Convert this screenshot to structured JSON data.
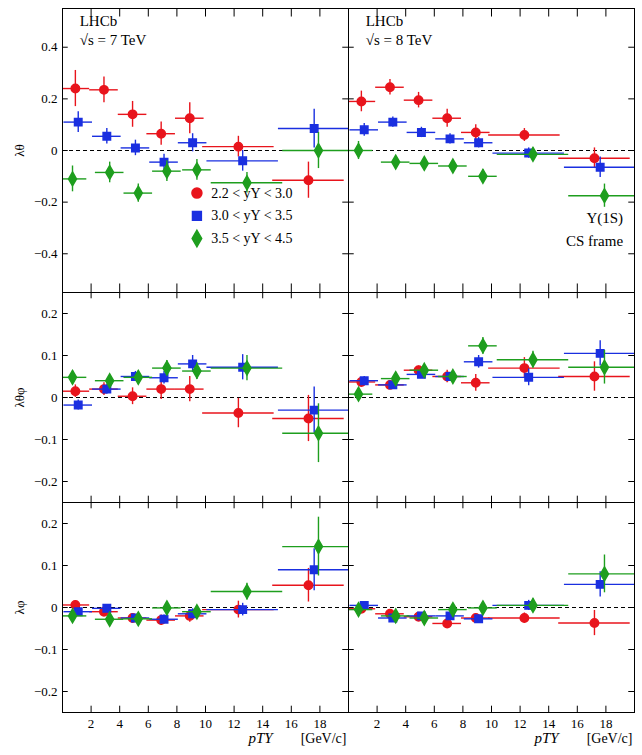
{
  "chart_data": [
    {
      "type": "scatter",
      "title": "LHCb",
      "subtitle": "√s = 7 TeV",
      "y_label": "λθ",
      "legend": "lower right",
      "tick_labels": "y",
      "xlim": [
        0,
        20
      ],
      "xticks": [
        2,
        4,
        6,
        8,
        10,
        12,
        14,
        16,
        18
      ],
      "ylim": [
        -0.55,
        0.55
      ],
      "yticks": [
        -0.4,
        -0.2,
        0,
        0.2,
        0.4
      ],
      "hline": 0,
      "series": [
        {
          "name": "2.2 < yΥ < 3.0",
          "color": "#e8141c",
          "marker": "circle",
          "x": [
            0.9,
            2.9,
            4.9,
            6.9,
            8.9,
            12.3,
            17.2
          ],
          "x_errors": [
            1,
            1,
            1,
            1,
            1,
            2.5,
            2.5
          ],
          "values": [
            0.24,
            0.235,
            0.14,
            0.065,
            0.125,
            0.015,
            -0.115
          ],
          "errors": [
            0.07,
            0.05,
            0.05,
            0.045,
            0.06,
            0.04,
            0.07
          ]
        },
        {
          "name": "3.0 < yΥ < 3.5",
          "color": "#1a2fe0",
          "marker": "square",
          "x": [
            1.1,
            3.1,
            5.1,
            7.1,
            9.1,
            12.6,
            17.6
          ],
          "x_errors": [
            1,
            1,
            1,
            1,
            1,
            2.5,
            2.5
          ],
          "values": [
            0.11,
            0.055,
            0.01,
            -0.045,
            0.03,
            -0.04,
            0.085
          ],
          "errors": [
            0.04,
            0.03,
            0.03,
            0.03,
            0.035,
            0.04,
            0.075
          ]
        },
        {
          "name": "3.5 < yΥ < 4.5",
          "color": "#1e9e1e",
          "marker": "diamond",
          "x": [
            0.7,
            3.3,
            5.3,
            7.3,
            9.4,
            12.9,
            17.9
          ],
          "x_errors": [
            1,
            1,
            1,
            1,
            1,
            2.5,
            2.5
          ],
          "values": [
            -0.11,
            -0.085,
            -0.165,
            -0.08,
            -0.075,
            -0.125,
            0.0
          ],
          "errors": [
            0.05,
            0.04,
            0.035,
            0.04,
            0.04,
            0.04,
            0.07
          ]
        }
      ]
    },
    {
      "type": "scatter",
      "title": "LHCb",
      "subtitle": "√s = 8 TeV",
      "note": [
        "Υ(1S)",
        "CS frame"
      ],
      "tick_labels": false,
      "xlim": [
        0,
        20
      ],
      "xticks": [
        2,
        4,
        6,
        8,
        10,
        12,
        14,
        16,
        18
      ],
      "ylim": [
        -0.55,
        0.55
      ],
      "yticks": [
        -0.4,
        -0.2,
        0,
        0.2,
        0.4
      ],
      "hline": 0,
      "series": [
        {
          "name": "2.2 < yΥ < 3.0",
          "color": "#e8141c",
          "marker": "circle",
          "x": [
            0.9,
            2.9,
            4.9,
            6.9,
            8.9,
            12.3,
            17.2
          ],
          "x_errors": [
            1,
            1,
            1,
            1,
            1,
            2.5,
            2.5
          ],
          "values": [
            0.19,
            0.245,
            0.195,
            0.125,
            0.07,
            0.06,
            -0.03
          ],
          "errors": [
            0.04,
            0.03,
            0.03,
            0.035,
            0.03,
            0.025,
            0.04
          ]
        },
        {
          "name": "3.0 < yΥ < 3.5",
          "color": "#1a2fe0",
          "marker": "square",
          "x": [
            1.1,
            3.1,
            5.1,
            7.1,
            9.1,
            12.6,
            17.6
          ],
          "x_errors": [
            1,
            1,
            1,
            1,
            1,
            2.5,
            2.5
          ],
          "values": [
            0.08,
            0.11,
            0.07,
            0.045,
            0.03,
            -0.01,
            -0.065
          ],
          "errors": [
            0.025,
            0.02,
            0.02,
            0.02,
            0.02,
            0.02,
            0.04
          ]
        },
        {
          "name": "3.5 < yΥ < 4.5",
          "color": "#1e9e1e",
          "marker": "diamond",
          "x": [
            0.7,
            3.3,
            5.3,
            7.3,
            9.4,
            12.9,
            17.9
          ],
          "x_errors": [
            1,
            1,
            1,
            1,
            1,
            2.5,
            2.5
          ],
          "values": [
            0.0,
            -0.045,
            -0.05,
            -0.06,
            -0.1,
            -0.015,
            -0.175
          ],
          "errors": [
            0.035,
            0.02,
            0.02,
            0.02,
            0.025,
            0.025,
            0.045
          ]
        }
      ]
    },
    {
      "type": "scatter",
      "y_label": "λθφ",
      "tick_labels": "y",
      "xlim": [
        0,
        20
      ],
      "xticks": [
        2,
        4,
        6,
        8,
        10,
        12,
        14,
        16,
        18
      ],
      "ylim": [
        -0.25,
        0.25
      ],
      "yticks": [
        -0.2,
        -0.1,
        0,
        0.1,
        0.2
      ],
      "hline": 0,
      "series": [
        {
          "name": "2.2 < yΥ < 3.0",
          "color": "#e8141c",
          "marker": "circle",
          "x": [
            0.9,
            2.9,
            4.9,
            6.9,
            8.9,
            12.3,
            17.2
          ],
          "x_errors": [
            1,
            1,
            1,
            1,
            1,
            2.5,
            2.5
          ],
          "values": [
            0.015,
            0.02,
            0.003,
            0.02,
            0.02,
            -0.037,
            -0.05
          ],
          "errors": [
            0.015,
            0.015,
            0.02,
            0.025,
            0.03,
            0.035,
            0.055
          ]
        },
        {
          "name": "3.0 < yΥ < 3.5",
          "color": "#1a2fe0",
          "marker": "square",
          "x": [
            1.1,
            3.1,
            5.1,
            7.1,
            9.1,
            12.6,
            17.6
          ],
          "x_errors": [
            1,
            1,
            1,
            1,
            1,
            2.5,
            2.5
          ],
          "values": [
            -0.018,
            0.02,
            0.05,
            0.047,
            0.08,
            0.072,
            -0.03
          ],
          "errors": [
            0.012,
            0.012,
            0.012,
            0.015,
            0.02,
            0.03,
            0.055
          ]
        },
        {
          "name": "3.5 < yΥ < 4.5",
          "color": "#1e9e1e",
          "marker": "diamond",
          "x": [
            0.7,
            3.3,
            5.3,
            7.3,
            9.4,
            12.9,
            17.9
          ],
          "x_errors": [
            1,
            1,
            1,
            1,
            1,
            2.5,
            2.5
          ],
          "values": [
            0.048,
            0.04,
            0.048,
            0.07,
            0.063,
            0.07,
            -0.085
          ],
          "errors": [
            0.015,
            0.012,
            0.015,
            0.018,
            0.02,
            0.03,
            0.07
          ]
        }
      ]
    },
    {
      "type": "scatter",
      "tick_labels": false,
      "xlim": [
        0,
        20
      ],
      "xticks": [
        2,
        4,
        6,
        8,
        10,
        12,
        14,
        16,
        18
      ],
      "ylim": [
        -0.25,
        0.25
      ],
      "yticks": [
        -0.2,
        -0.1,
        0,
        0.1,
        0.2
      ],
      "hline": 0,
      "series": [
        {
          "name": "2.2 < yΥ < 3.0",
          "color": "#e8141c",
          "marker": "circle",
          "x": [
            0.9,
            2.9,
            4.9,
            6.9,
            8.9,
            12.3,
            17.2
          ],
          "x_errors": [
            1,
            1,
            1,
            1,
            1,
            2.5,
            2.5
          ],
          "values": [
            0.037,
            0.03,
            0.065,
            0.05,
            0.035,
            0.07,
            0.05
          ],
          "errors": [
            0.01,
            0.01,
            0.01,
            0.015,
            0.02,
            0.025,
            0.035
          ]
        },
        {
          "name": "3.0 < yΥ < 3.5",
          "color": "#1a2fe0",
          "marker": "square",
          "x": [
            1.1,
            3.1,
            5.1,
            7.1,
            9.1,
            12.6,
            17.6
          ],
          "x_errors": [
            1,
            1,
            1,
            1,
            1,
            2.5,
            2.5
          ],
          "values": [
            0.04,
            0.03,
            0.055,
            0.05,
            0.085,
            0.048,
            0.105
          ],
          "errors": [
            0.01,
            0.008,
            0.008,
            0.01,
            0.015,
            0.02,
            0.03
          ]
        },
        {
          "name": "3.5 < yΥ < 4.5",
          "color": "#1e9e1e",
          "marker": "diamond",
          "x": [
            0.7,
            3.3,
            5.3,
            7.3,
            9.4,
            12.9,
            17.9
          ],
          "x_errors": [
            1,
            1,
            1,
            1,
            1,
            2.5,
            2.5
          ],
          "values": [
            0.008,
            0.045,
            0.065,
            0.05,
            0.123,
            0.09,
            0.072
          ],
          "errors": [
            0.008,
            0.008,
            0.01,
            0.012,
            0.02,
            0.02,
            0.04
          ]
        }
      ]
    },
    {
      "type": "scatter",
      "y_label": "λφ",
      "x_label": "pTΥ",
      "x_unit": "[GeV/c]",
      "tick_labels": true,
      "xlim": [
        0,
        20
      ],
      "xticks": [
        2,
        4,
        6,
        8,
        10,
        12,
        14,
        16,
        18
      ],
      "ylim": [
        -0.25,
        0.25
      ],
      "yticks": [
        -0.2,
        -0.1,
        0,
        0.1,
        0.2
      ],
      "hline": 0,
      "series": [
        {
          "name": "2.2 < yΥ < 3.0",
          "color": "#e8141c",
          "marker": "circle",
          "x": [
            0.9,
            2.9,
            4.9,
            6.9,
            8.9,
            12.3,
            17.2
          ],
          "x_errors": [
            1,
            1,
            1,
            1,
            1,
            2.5,
            2.5
          ],
          "values": [
            0.006,
            -0.01,
            -0.025,
            -0.03,
            -0.02,
            -0.005,
            0.053
          ],
          "errors": [
            0.01,
            0.01,
            0.01,
            0.012,
            0.015,
            0.02,
            0.04
          ]
        },
        {
          "name": "3.0 < yΥ < 3.5",
          "color": "#1a2fe0",
          "marker": "square",
          "x": [
            1.1,
            3.1,
            5.1,
            7.1,
            9.1,
            12.6,
            17.6
          ],
          "x_errors": [
            1,
            1,
            1,
            1,
            1,
            2.5,
            2.5
          ],
          "values": [
            -0.01,
            -0.002,
            -0.025,
            -0.028,
            -0.015,
            -0.005,
            0.09
          ],
          "errors": [
            0.008,
            0.008,
            0.008,
            0.01,
            0.012,
            0.015,
            0.05
          ]
        },
        {
          "name": "3.5 < yΥ < 4.5",
          "color": "#1e9e1e",
          "marker": "diamond",
          "x": [
            0.7,
            3.3,
            5.3,
            7.3,
            9.4,
            12.9,
            17.9
          ],
          "x_errors": [
            1,
            1,
            1,
            1,
            1,
            2.5,
            2.5
          ],
          "values": [
            -0.02,
            -0.028,
            -0.027,
            -0.001,
            -0.01,
            0.038,
            0.145
          ],
          "errors": [
            0.008,
            0.008,
            0.008,
            0.01,
            0.012,
            0.02,
            0.07
          ]
        }
      ]
    },
    {
      "type": "scatter",
      "x_label": "pTΥ",
      "x_unit": "[GeV/c]",
      "tick_labels": "x",
      "xlim": [
        0,
        20
      ],
      "xticks": [
        2,
        4,
        6,
        8,
        10,
        12,
        14,
        16,
        18
      ],
      "ylim": [
        -0.25,
        0.25
      ],
      "yticks": [
        -0.2,
        -0.1,
        0,
        0.1,
        0.2
      ],
      "hline": 0,
      "series": [
        {
          "name": "2.2 < yΥ < 3.0",
          "color": "#e8141c",
          "marker": "circle",
          "x": [
            0.9,
            2.9,
            4.9,
            6.9,
            8.9,
            12.3,
            17.2
          ],
          "x_errors": [
            1,
            1,
            1,
            1,
            1,
            2.5,
            2.5
          ],
          "values": [
            -0.003,
            -0.015,
            -0.022,
            -0.038,
            -0.025,
            -0.025,
            -0.037
          ],
          "errors": [
            0.005,
            0.005,
            0.005,
            0.007,
            0.01,
            0.012,
            0.03
          ]
        },
        {
          "name": "3.0 < yΥ < 3.5",
          "color": "#1a2fe0",
          "marker": "square",
          "x": [
            1.1,
            3.1,
            5.1,
            7.1,
            9.1,
            12.6,
            17.6
          ],
          "x_errors": [
            1,
            1,
            1,
            1,
            1,
            2.5,
            2.5
          ],
          "values": [
            0.005,
            -0.025,
            -0.02,
            -0.02,
            -0.027,
            0.005,
            0.055
          ],
          "errors": [
            0.005,
            0.005,
            0.005,
            0.006,
            0.008,
            0.012,
            0.03
          ]
        },
        {
          "name": "3.5 < yΥ < 4.5",
          "color": "#1e9e1e",
          "marker": "diamond",
          "x": [
            0.7,
            3.3,
            5.3,
            7.3,
            9.4,
            12.9,
            17.9
          ],
          "x_errors": [
            1,
            1,
            1,
            1,
            1,
            2.5,
            2.5
          ],
          "values": [
            -0.005,
            -0.02,
            -0.025,
            -0.005,
            -0.001,
            0.005,
            0.08
          ],
          "errors": [
            0.005,
            0.004,
            0.005,
            0.006,
            0.008,
            0.015,
            0.045
          ]
        }
      ]
    }
  ]
}
